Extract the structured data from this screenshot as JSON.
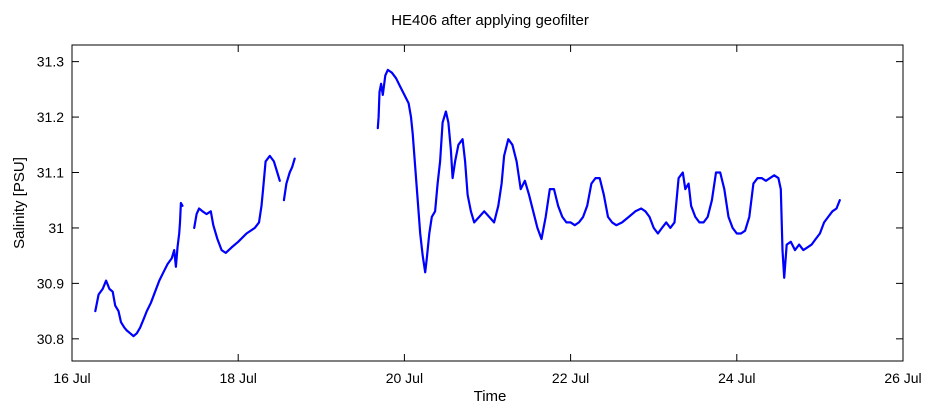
{
  "chart_data": {
    "type": "line",
    "title": "HE406 after applying geofilter",
    "xlabel": "Time",
    "ylabel": "Salinity [PSU]",
    "x_unit": "days (July)",
    "xlim": [
      16,
      26
    ],
    "ylim": [
      30.76,
      31.33
    ],
    "xticks": [
      16,
      18,
      20,
      22,
      24,
      26
    ],
    "xtick_labels": [
      "16 Jul",
      "18 Jul",
      "20 Jul",
      "22 Jul",
      "24 Jul",
      "26 Jul"
    ],
    "yticks": [
      30.8,
      30.9,
      31.0,
      31.1,
      31.2,
      31.3
    ],
    "ytick_labels": [
      "30.8",
      "30.9",
      "31",
      "31.1",
      "31.2",
      "31.3"
    ],
    "grid": false,
    "line_color": "#0000ff",
    "series": [
      {
        "segments": [
          [
            [
              16.28,
              30.85
            ],
            [
              16.32,
              30.88
            ],
            [
              16.37,
              30.89
            ],
            [
              16.41,
              30.905
            ],
            [
              16.45,
              30.89
            ],
            [
              16.49,
              30.885
            ],
            [
              16.52,
              30.86
            ],
            [
              16.56,
              30.85
            ],
            [
              16.59,
              30.83
            ],
            [
              16.63,
              30.82
            ],
            [
              16.66,
              30.815
            ],
            [
              16.7,
              30.81
            ],
            [
              16.74,
              30.805
            ],
            [
              16.78,
              30.81
            ],
            [
              16.82,
              30.82
            ],
            [
              16.86,
              30.835
            ],
            [
              16.9,
              30.85
            ],
            [
              16.95,
              30.865
            ],
            [
              17.0,
              30.885
            ],
            [
              17.05,
              30.905
            ],
            [
              17.1,
              30.92
            ],
            [
              17.15,
              30.935
            ],
            [
              17.2,
              30.945
            ],
            [
              17.23,
              30.96
            ],
            [
              17.25,
              30.93
            ],
            [
              17.27,
              30.965
            ],
            [
              17.29,
              30.99
            ],
            [
              17.3,
              31.01
            ],
            [
              17.31,
              31.045
            ],
            [
              17.33,
              31.04
            ]
          ],
          [
            [
              17.47,
              31.0
            ],
            [
              17.5,
              31.025
            ],
            [
              17.53,
              31.035
            ],
            [
              17.57,
              31.03
            ],
            [
              17.62,
              31.025
            ],
            [
              17.67,
              31.03
            ],
            [
              17.7,
              31.005
            ],
            [
              17.75,
              30.98
            ],
            [
              17.8,
              30.96
            ],
            [
              17.85,
              30.955
            ],
            [
              17.92,
              30.965
            ],
            [
              18.0,
              30.975
            ],
            [
              18.1,
              30.99
            ],
            [
              18.2,
              31.0
            ],
            [
              18.25,
              31.01
            ],
            [
              18.28,
              31.04
            ],
            [
              18.3,
              31.07
            ],
            [
              18.33,
              31.12
            ],
            [
              18.38,
              31.13
            ],
            [
              18.43,
              31.12
            ],
            [
              18.47,
              31.1
            ],
            [
              18.5,
              31.085
            ]
          ],
          [
            [
              18.55,
              31.05
            ],
            [
              18.58,
              31.08
            ],
            [
              18.62,
              31.1
            ],
            [
              18.65,
              31.11
            ],
            [
              18.68,
              31.125
            ]
          ],
          [
            [
              19.68,
              31.18
            ],
            [
              19.69,
              31.2
            ],
            [
              19.7,
              31.245
            ],
            [
              19.72,
              31.26
            ],
            [
              19.74,
              31.24
            ],
            [
              19.77,
              31.275
            ],
            [
              19.8,
              31.285
            ],
            [
              19.85,
              31.28
            ],
            [
              19.9,
              31.27
            ],
            [
              19.95,
              31.255
            ],
            [
              20.0,
              31.24
            ],
            [
              20.05,
              31.225
            ],
            [
              20.08,
              31.2
            ],
            [
              20.1,
              31.17
            ],
            [
              20.13,
              31.11
            ],
            [
              20.16,
              31.05
            ],
            [
              20.19,
              30.99
            ],
            [
              20.22,
              30.95
            ],
            [
              20.25,
              30.92
            ],
            [
              20.27,
              30.945
            ],
            [
              20.3,
              30.99
            ],
            [
              20.33,
              31.02
            ],
            [
              20.37,
              31.03
            ],
            [
              20.4,
              31.08
            ],
            [
              20.43,
              31.12
            ],
            [
              20.46,
              31.19
            ],
            [
              20.5,
              31.21
            ],
            [
              20.53,
              31.19
            ],
            [
              20.56,
              31.14
            ],
            [
              20.58,
              31.09
            ],
            [
              20.61,
              31.12
            ],
            [
              20.65,
              31.15
            ],
            [
              20.7,
              31.16
            ],
            [
              20.73,
              31.12
            ],
            [
              20.76,
              31.06
            ],
            [
              20.8,
              31.03
            ],
            [
              20.84,
              31.01
            ],
            [
              20.9,
              31.02
            ],
            [
              20.96,
              31.03
            ],
            [
              21.02,
              31.02
            ],
            [
              21.08,
              31.01
            ],
            [
              21.13,
              31.04
            ],
            [
              21.17,
              31.08
            ],
            [
              21.2,
              31.13
            ],
            [
              21.25,
              31.16
            ],
            [
              21.3,
              31.15
            ],
            [
              21.35,
              31.12
            ],
            [
              21.4,
              31.07
            ],
            [
              21.45,
              31.085
            ],
            [
              21.5,
              31.06
            ],
            [
              21.55,
              31.03
            ],
            [
              21.6,
              31.0
            ],
            [
              21.65,
              30.98
            ],
            [
              21.7,
              31.02
            ],
            [
              21.75,
              31.07
            ],
            [
              21.8,
              31.07
            ],
            [
              21.85,
              31.04
            ],
            [
              21.9,
              31.02
            ],
            [
              21.95,
              31.01
            ],
            [
              22.0,
              31.01
            ],
            [
              22.05,
              31.005
            ],
            [
              22.1,
              31.01
            ],
            [
              22.15,
              31.02
            ],
            [
              22.2,
              31.04
            ],
            [
              22.25,
              31.08
            ],
            [
              22.3,
              31.09
            ],
            [
              22.35,
              31.09
            ],
            [
              22.4,
              31.06
            ],
            [
              22.45,
              31.02
            ],
            [
              22.5,
              31.01
            ],
            [
              22.55,
              31.005
            ],
            [
              22.62,
              31.01
            ],
            [
              22.7,
              31.02
            ],
            [
              22.78,
              31.03
            ],
            [
              22.85,
              31.035
            ],
            [
              22.9,
              31.03
            ],
            [
              22.95,
              31.02
            ],
            [
              23.0,
              31.0
            ],
            [
              23.05,
              30.99
            ],
            [
              23.1,
              31.0
            ],
            [
              23.15,
              31.01
            ],
            [
              23.2,
              31.0
            ],
            [
              23.25,
              31.01
            ],
            [
              23.3,
              31.09
            ],
            [
              23.35,
              31.1
            ],
            [
              23.38,
              31.07
            ],
            [
              23.42,
              31.08
            ],
            [
              23.45,
              31.04
            ],
            [
              23.5,
              31.02
            ],
            [
              23.55,
              31.01
            ],
            [
              23.6,
              31.01
            ],
            [
              23.65,
              31.02
            ],
            [
              23.7,
              31.05
            ],
            [
              23.75,
              31.1
            ],
            [
              23.8,
              31.1
            ],
            [
              23.85,
              31.07
            ],
            [
              23.9,
              31.02
            ],
            [
              23.95,
              31.0
            ],
            [
              24.0,
              30.99
            ],
            [
              24.05,
              30.99
            ],
            [
              24.1,
              30.995
            ],
            [
              24.15,
              31.02
            ],
            [
              24.2,
              31.08
            ],
            [
              24.25,
              31.09
            ],
            [
              24.3,
              31.09
            ],
            [
              24.35,
              31.085
            ],
            [
              24.4,
              31.09
            ],
            [
              24.45,
              31.095
            ],
            [
              24.5,
              31.09
            ],
            [
              24.53,
              31.07
            ],
            [
              24.55,
              30.96
            ],
            [
              24.57,
              30.91
            ],
            [
              24.6,
              30.97
            ],
            [
              24.65,
              30.975
            ],
            [
              24.7,
              30.96
            ],
            [
              24.75,
              30.97
            ],
            [
              24.8,
              30.96
            ],
            [
              24.85,
              30.965
            ],
            [
              24.9,
              30.97
            ],
            [
              24.95,
              30.98
            ],
            [
              25.0,
              30.99
            ],
            [
              25.05,
              31.01
            ],
            [
              25.1,
              31.02
            ],
            [
              25.15,
              31.03
            ],
            [
              25.2,
              31.035
            ],
            [
              25.24,
              31.05
            ]
          ]
        ]
      }
    ]
  }
}
